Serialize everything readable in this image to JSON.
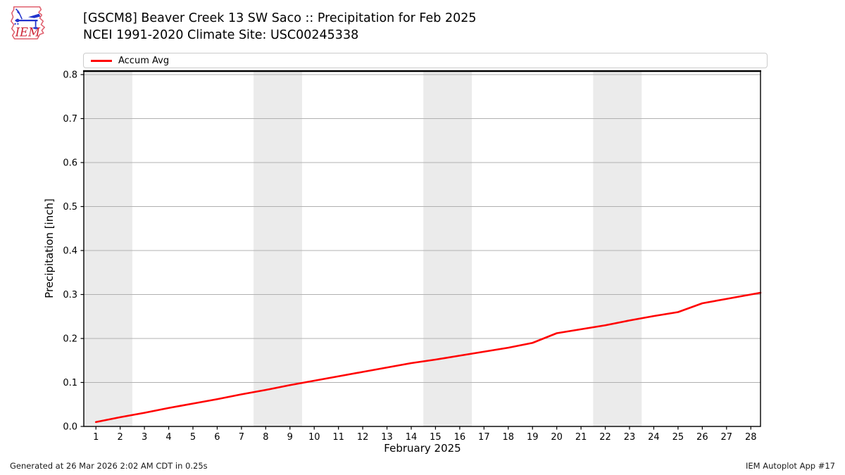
{
  "header": {
    "logo_text": "IEM",
    "title_line1": "[GSCM8] Beaver Creek 13 SW Saco :: Precipitation for Feb 2025",
    "title_line2": "NCEI 1991-2020 Climate Site: USC00245338"
  },
  "legend": {
    "items": [
      {
        "label": "Accum Avg",
        "color": "#ff0000"
      }
    ]
  },
  "chart_data": {
    "type": "line",
    "title": "[GSCM8] Beaver Creek 13 SW Saco :: Precipitation for Feb 2025",
    "subtitle": "NCEI 1991-2020 Climate Site: USC00245338",
    "xlabel": "February 2025",
    "ylabel": "Precipitation [inch]",
    "xlim": [
      0.5,
      28.4
    ],
    "ylim": [
      0,
      0.808
    ],
    "xticks": [
      1,
      2,
      3,
      4,
      5,
      6,
      7,
      8,
      9,
      10,
      11,
      12,
      13,
      14,
      15,
      16,
      17,
      18,
      19,
      20,
      21,
      22,
      23,
      24,
      25,
      26,
      27,
      28
    ],
    "ytick_labels": [
      "0.0",
      "0.1",
      "0.2",
      "0.3",
      "0.4",
      "0.5",
      "0.6",
      "0.7",
      "0.8"
    ],
    "grid": "horizontal",
    "grid_color": "#b0b0b0",
    "weekend_bands": [
      [
        0.5,
        2.5
      ],
      [
        7.5,
        9.5
      ],
      [
        14.5,
        16.5
      ],
      [
        21.5,
        23.5
      ]
    ],
    "band_color": "#ebebeb",
    "legend_position": "top",
    "series": [
      {
        "name": "Accum Avg",
        "color": "#ff0000",
        "x": [
          1,
          2,
          3,
          4,
          5,
          6,
          7,
          8,
          9,
          10,
          11,
          12,
          13,
          14,
          15,
          16,
          17,
          18,
          19,
          20,
          21,
          22,
          23,
          24,
          25,
          26,
          27,
          28,
          28.4
        ],
        "y": [
          0.01,
          0.021,
          0.031,
          0.042,
          0.052,
          0.062,
          0.073,
          0.083,
          0.094,
          0.104,
          0.114,
          0.124,
          0.134,
          0.144,
          0.152,
          0.161,
          0.17,
          0.179,
          0.19,
          0.212,
          0.221,
          0.23,
          0.241,
          0.251,
          0.26,
          0.28,
          0.29,
          0.3,
          0.304
        ]
      }
    ]
  },
  "footer": {
    "left": "Generated at 26 Mar 2026 2:02 AM CDT in 0.25s",
    "right": "IEM Autoplot App #17"
  }
}
